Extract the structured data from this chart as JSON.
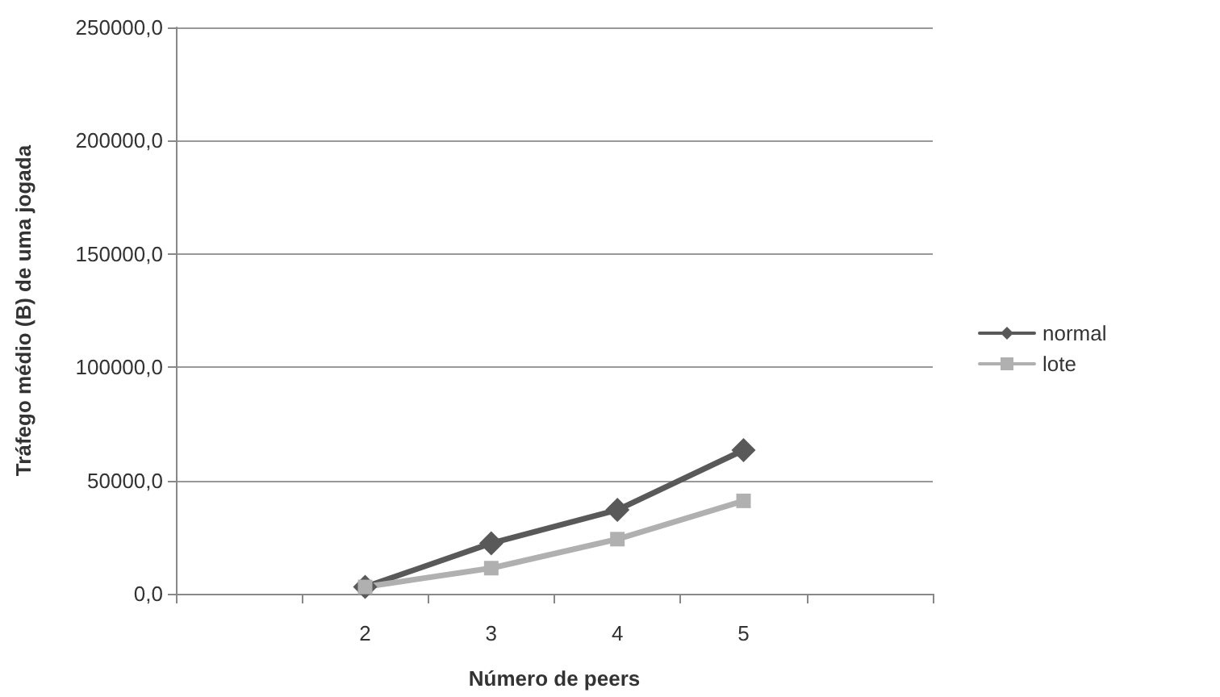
{
  "chart_data": {
    "type": "line",
    "xlabel": "Número de peers",
    "ylabel": "Tráfego médio (B) de uma jogada",
    "categories": [
      null,
      "2",
      "3",
      "4",
      "5",
      null
    ],
    "series": [
      {
        "name": "normal",
        "color": "#595959",
        "marker": "diamond",
        "values": [
          null,
          3000,
          22300,
          37000,
          63400,
          null
        ]
      },
      {
        "name": "lote",
        "color": "#b0b0b0",
        "marker": "square",
        "values": [
          null,
          3000,
          11300,
          24100,
          41000,
          null
        ]
      }
    ],
    "ylim": [
      0,
      250000
    ],
    "yticks": [
      {
        "value": 0,
        "label": "0,0"
      },
      {
        "value": 50000,
        "label": "50000,0"
      },
      {
        "value": 100000,
        "label": "100000,0"
      },
      {
        "value": 150000,
        "label": "150000,0"
      },
      {
        "value": 200000,
        "label": "200000,0"
      },
      {
        "value": 250000,
        "label": "250000,0"
      }
    ],
    "grid": "y",
    "legend": "right"
  }
}
